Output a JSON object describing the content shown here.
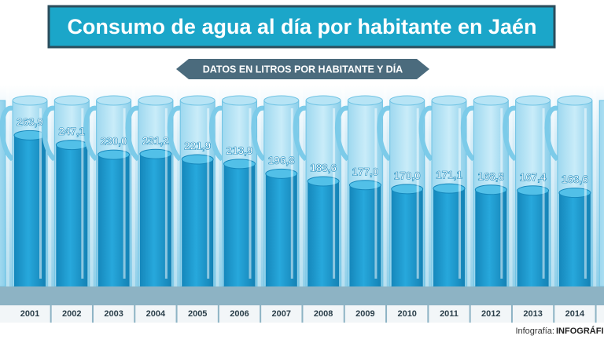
{
  "chart_data": {
    "type": "bar",
    "title": "Consumo de agua al día por habitante en Jaén",
    "subtitle": "DATOS EN LITROS POR HABITANTE Y DÍA",
    "categories": [
      "2001",
      "2002",
      "2003",
      "2004",
      "2005",
      "2006",
      "2007",
      "2008",
      "2009",
      "2010",
      "2011",
      "2012",
      "2013",
      "2014"
    ],
    "values": [
      263.9,
      247.1,
      230.0,
      231.2,
      221.9,
      213.9,
      196.8,
      183.6,
      177.0,
      170.0,
      171.1,
      168.8,
      167.4,
      163.6
    ],
    "value_labels": [
      "263,9",
      "247,1",
      "230,0",
      "231,2",
      "221,9",
      "213,9",
      "196,8",
      "183,6",
      "177,0",
      "170,0",
      "171,1",
      "168,8",
      "167,4",
      "163,6"
    ],
    "color": "#1c9fd2",
    "credit_label": "Infografía:",
    "credit_name": "INFOGRÁFI"
  }
}
